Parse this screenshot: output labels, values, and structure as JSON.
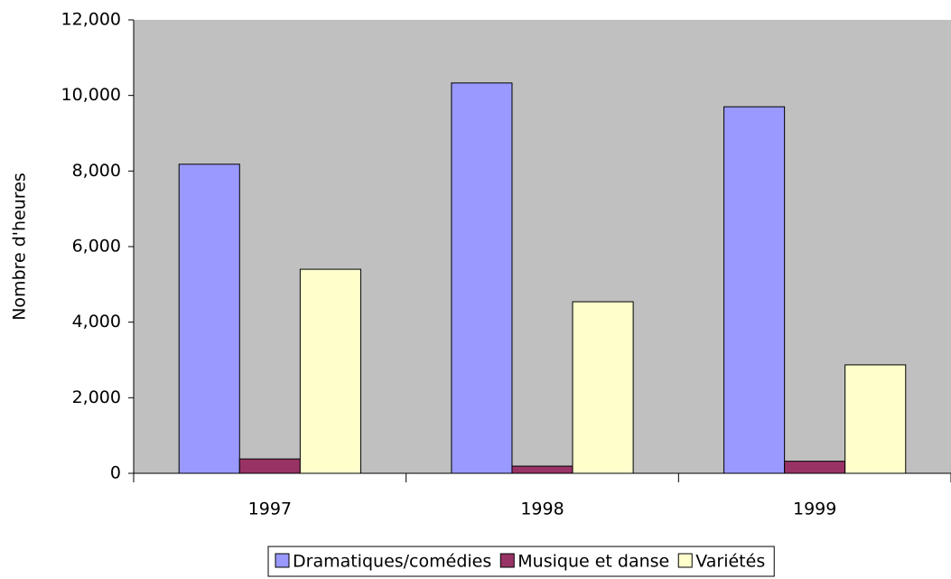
{
  "chart_data": {
    "type": "bar",
    "y_label": "Nombre d'heures",
    "categories": [
      "1997",
      "1998",
      "1999"
    ],
    "series": [
      {
        "name": "Dramatiques/comédies",
        "color": "#9999ff",
        "values": [
          8180,
          10330,
          9700
        ]
      },
      {
        "name": "Musique et danse",
        "color": "#993366",
        "values": [
          380,
          190,
          320
        ]
      },
      {
        "name": "Variétés",
        "color": "#ffffcc",
        "values": [
          5400,
          4540,
          2870
        ]
      }
    ],
    "ylim": [
      0,
      12000
    ],
    "yticks": [
      0,
      {
        "value": 2000,
        "label": "2,000"
      },
      {
        "value": 4000,
        "label": "4,000"
      },
      {
        "value": 6000,
        "label": "6,000"
      },
      {
        "value": 8000,
        "label": "8,000"
      },
      {
        "value": 10000,
        "label": "10,000"
      },
      {
        "value": 12000,
        "label": "12,000"
      }
    ],
    "plot_background": "#c0c0c0",
    "legend": "bottom"
  }
}
